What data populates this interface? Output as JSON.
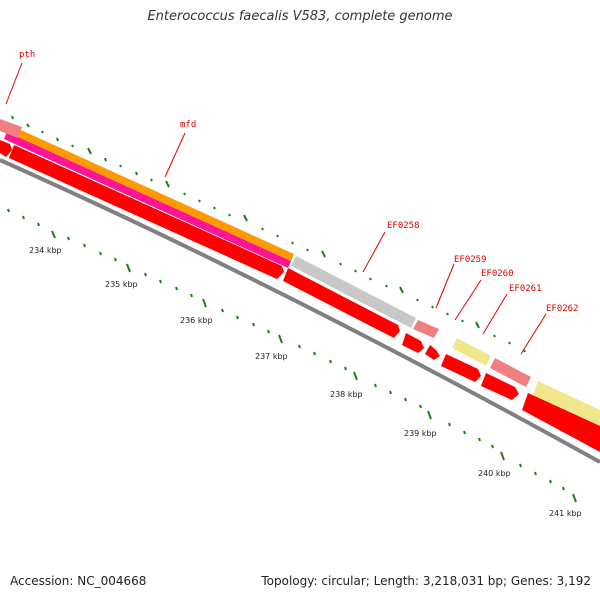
{
  "title": "Enterococcus faecalis V583, complete genome",
  "footer": {
    "accession": "Accession: NC_004668",
    "topology": "Topology: circular; Length: 3,218,031 bp; Genes: 3,192"
  },
  "colors": {
    "background": "#ffffff",
    "forward_cds": "#ff0000",
    "backbone": "#808080",
    "orange_feature": "#ff9900",
    "pink_feature": "#ff1493",
    "gray_feature": "#c8c8c8",
    "salmon_feature": "#f08080",
    "yellow_feature": "#f0e68c",
    "tick": "#1a7f1a",
    "label": "#e00000"
  },
  "gene_labels": [
    {
      "id": "pth",
      "text": "pth"
    },
    {
      "id": "mfd",
      "text": "mfd"
    },
    {
      "id": "ef0258",
      "text": "EF0258"
    },
    {
      "id": "ef0259",
      "text": "EF0259"
    },
    {
      "id": "ef0260",
      "text": "EF0260"
    },
    {
      "id": "ef0261",
      "text": "EF0261"
    },
    {
      "id": "ef0262",
      "text": "EF0262"
    }
  ],
  "kbp_labels": [
    "234 kbp",
    "235 kbp",
    "236 kbp",
    "237 kbp",
    "238 kbp",
    "239 kbp",
    "240 kbp",
    "241 kbp"
  ]
}
